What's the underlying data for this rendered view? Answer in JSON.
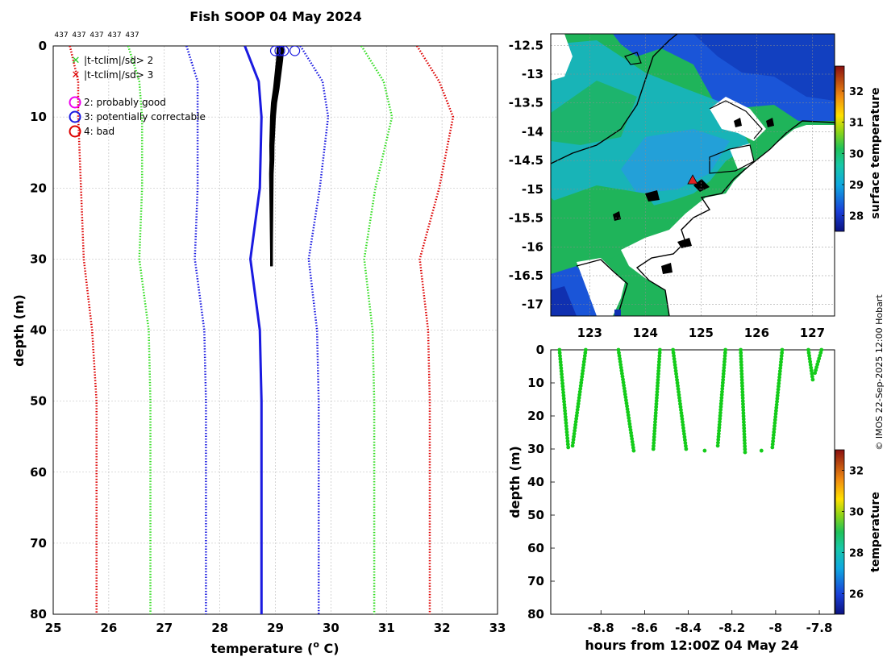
{
  "title": "Fish SOOP 04 May 2024",
  "credit": "© IMOS 22-Sep-2025 12:00 Hobart",
  "colors": {
    "red": "#dd0000",
    "green": "#33dd22",
    "blue": "#1a1ae0",
    "profile": "#000000",
    "grid": "#b8b8b8",
    "land": "#ffffff",
    "coast": "#000000"
  },
  "chart_data": [
    {
      "type": "line",
      "id": "profile",
      "title": "Fish SOOP 04 May 2024",
      "xlabel": "temperature (° C)",
      "ylabel": "depth (m)",
      "xlim": [
        25,
        33
      ],
      "ylim": [
        80,
        0
      ],
      "xticks": [
        "25",
        "26",
        "27",
        "28",
        "29",
        "30",
        "31",
        "32",
        "33"
      ],
      "yticks": [
        "0",
        "10",
        "20",
        "30",
        "40",
        "50",
        "60",
        "70",
        "80"
      ],
      "top_labels": [
        "437",
        "437",
        "437",
        "437",
        "437"
      ],
      "legend": {
        "markers": [
          "|t-tclim|/sd> 2",
          "|t-tclim|/sd> 3"
        ],
        "flags": [
          "2: probably good",
          "3: potentially correctable",
          "4: bad"
        ]
      },
      "depth": [
        0,
        5,
        10,
        20,
        30,
        40,
        50,
        60,
        70,
        80
      ],
      "series": [
        {
          "name": "climatology -3sd",
          "color": "red",
          "style": "dotted",
          "values": [
            25.3,
            25.45,
            25.45,
            25.5,
            25.55,
            25.7,
            25.78,
            25.78,
            25.78,
            25.78
          ]
        },
        {
          "name": "climatology -2sd",
          "color": "green",
          "style": "dotted",
          "values": [
            26.35,
            26.55,
            26.6,
            26.6,
            26.55,
            26.72,
            26.75,
            26.75,
            26.75,
            26.75
          ]
        },
        {
          "name": "climatology -1sd",
          "color": "blue",
          "style": "dotted",
          "values": [
            27.4,
            27.6,
            27.6,
            27.6,
            27.55,
            27.72,
            27.75,
            27.75,
            27.75,
            27.75
          ]
        },
        {
          "name": "climatology mean",
          "color": "blue",
          "style": "solid",
          "values": [
            28.45,
            28.7,
            28.75,
            28.72,
            28.55,
            28.72,
            28.75,
            28.75,
            28.75,
            28.75
          ]
        },
        {
          "name": "climatology +1sd",
          "color": "blue",
          "style": "dotted",
          "values": [
            29.45,
            29.85,
            29.95,
            29.8,
            29.6,
            29.75,
            29.78,
            29.78,
            29.78,
            29.78
          ]
        },
        {
          "name": "climatology +2sd",
          "color": "green",
          "style": "dotted",
          "values": [
            30.55,
            30.95,
            31.1,
            30.8,
            30.6,
            30.75,
            30.78,
            30.78,
            30.78,
            30.78
          ]
        },
        {
          "name": "climatology +3sd",
          "color": "red",
          "style": "dotted",
          "values": [
            31.55,
            31.95,
            32.2,
            31.95,
            31.6,
            31.75,
            31.78,
            31.78,
            31.78,
            31.78
          ]
        }
      ],
      "profile": {
        "depth": [
          0,
          2,
          4,
          6,
          8,
          10,
          12,
          14,
          16,
          18,
          20,
          22,
          24,
          26,
          28,
          30,
          31
        ],
        "temperature": [
          29.1,
          29.08,
          29.05,
          29.02,
          28.98,
          28.96,
          28.95,
          28.94,
          28.94,
          28.93,
          28.93,
          28.93,
          28.93,
          28.93,
          28.93,
          28.93,
          28.93
        ]
      },
      "surface_flags": [
        29.0,
        29.08,
        29.15,
        29.35
      ]
    },
    {
      "type": "heatmap",
      "id": "map",
      "colorbar_label": "surface temperature",
      "xlim": [
        122.3,
        127.4
      ],
      "ylim": [
        -17.2,
        -12.3
      ],
      "xticks": [
        "123",
        "124",
        "125",
        "126",
        "127"
      ],
      "yticks": [
        "-12.5",
        "-13",
        "-13.5",
        "-14",
        "-14.5",
        "-15",
        "-15.5",
        "-16",
        "-16.5",
        "-17"
      ],
      "colorbar_range": [
        27.5,
        32.8
      ],
      "colorbar_ticks": [
        "28",
        "29",
        "30",
        "31",
        "32"
      ],
      "station": {
        "lon": 124.85,
        "lat": -14.85
      }
    },
    {
      "type": "scatter",
      "id": "timeseries",
      "xlabel": "hours from 12:00Z 04 May 24",
      "ylabel": "depth (m)",
      "colorbar_label": "temperature",
      "xlim": [
        -9.03,
        -7.73
      ],
      "ylim": [
        80,
        0
      ],
      "xticks": [
        "-8.8",
        "-8.6",
        "-8.4",
        "-8.2",
        "-8",
        "-7.8"
      ],
      "yticks": [
        "0",
        "10",
        "20",
        "30",
        "40",
        "50",
        "60",
        "70",
        "80"
      ],
      "colorbar_range": [
        25,
        33
      ],
      "colorbar_ticks": [
        "26",
        "28",
        "30",
        "32"
      ],
      "casts": [
        [
          -8.99,
          0,
          -8.95,
          29.5
        ],
        [
          -8.87,
          0,
          -8.93,
          29
        ],
        [
          -8.72,
          0,
          -8.65,
          30.5
        ],
        [
          -8.53,
          0,
          -8.56,
          30
        ],
        [
          -8.47,
          0,
          -8.41,
          30
        ],
        [
          -8.23,
          0,
          -8.265,
          29
        ],
        [
          -8.16,
          0,
          -8.14,
          31
        ],
        [
          -7.97,
          0,
          -8.015,
          29.5
        ],
        [
          -7.85,
          0,
          -7.83,
          9
        ],
        [
          -7.79,
          0,
          -7.82,
          7
        ]
      ],
      "singles": [
        [
          -8.325,
          30.5
        ],
        [
          -8.065,
          30.5
        ]
      ]
    }
  ]
}
